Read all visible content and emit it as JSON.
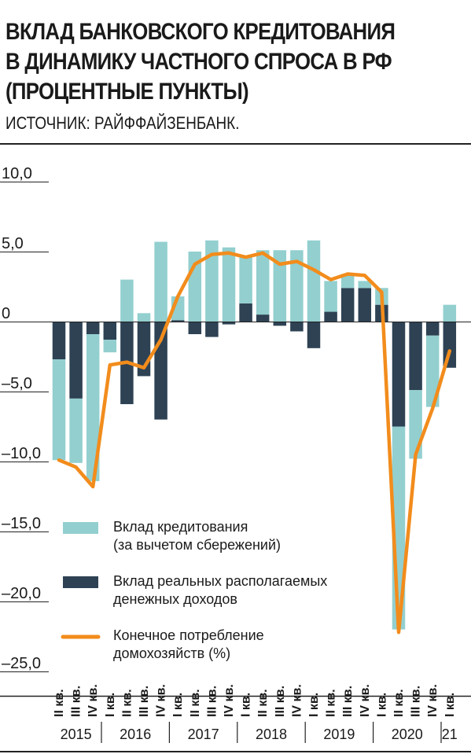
{
  "header": {
    "title_lines": [
      "ВКЛАД БАНКОВСКОГО КРЕДИТОВАНИЯ",
      "В ДИНАМИКУ ЧАСТНОГО СПРОСА В РФ",
      "(ПРОЦЕНТНЫЕ ПУНКТЫ)"
    ],
    "source": "ИСТОЧНИК: РАЙФФАЙЗЕНБАНК."
  },
  "colors": {
    "credit": "#93cfcf",
    "income": "#2e4254",
    "consumption": "#f28c1c",
    "axis": "#222222"
  },
  "chart_data": {
    "type": "bar",
    "stacked": true,
    "ylim": [
      -25,
      10
    ],
    "yticks": [
      "10,0",
      "5,0",
      "0",
      "–5,0",
      "–10,0",
      "–15,0",
      "–20,0",
      "–25,0"
    ],
    "ytick_values": [
      10,
      5,
      0,
      -5,
      -10,
      -15,
      -20,
      -25
    ],
    "categories": [
      "II кв.",
      "III кв.",
      "IV кв.",
      "I кв.",
      "II кв.",
      "III кв.",
      "IV кв.",
      "I кв.",
      "II кв.",
      "III кв.",
      "IV кв.",
      "I кв.",
      "II кв.",
      "III кв.",
      "IV кв.",
      "I кв.",
      "II кв.",
      "III кв.",
      "IV кв.",
      "I кв.",
      "II кв.",
      "III кв.",
      "IV кв.",
      "I кв."
    ],
    "year_groups": [
      {
        "label": "2015",
        "start": 0,
        "end": 2
      },
      {
        "label": "2016",
        "start": 3,
        "end": 6
      },
      {
        "label": "2017",
        "start": 7,
        "end": 10
      },
      {
        "label": "2018",
        "start": 11,
        "end": 14
      },
      {
        "label": "2019",
        "start": 15,
        "end": 18
      },
      {
        "label": "2020",
        "start": 19,
        "end": 22
      },
      {
        "label": "21",
        "start": 23,
        "end": 23
      }
    ],
    "series": [
      {
        "name": "Вклад реальных располагаемых денежных доходов",
        "kind": "bar",
        "values": [
          -2.7,
          -5.5,
          -0.9,
          -1.3,
          -5.9,
          -3.9,
          -7.0,
          0.1,
          -0.9,
          -1.1,
          -0.2,
          1.3,
          0.5,
          -0.3,
          -0.7,
          -1.9,
          0.7,
          2.4,
          2.4,
          1.2,
          -7.5,
          -4.9,
          -1.0,
          -3.3
        ]
      },
      {
        "name": "Вклад кредитования (за вычетом сбережений)",
        "kind": "bar",
        "values": [
          -7.2,
          -4.6,
          -10.5,
          -0.9,
          3.0,
          0.6,
          5.7,
          1.7,
          5.0,
          5.8,
          5.3,
          3.4,
          4.6,
          5.1,
          5.1,
          5.8,
          2.2,
          1.0,
          0.5,
          1.2,
          -14.5,
          -4.9,
          -5.1,
          1.2
        ]
      },
      {
        "name": "Конечное потребление домохозяйств (%)",
        "kind": "line",
        "values": [
          -9.9,
          -10.4,
          -11.8,
          -3.1,
          -2.9,
          -3.3,
          -1.3,
          1.8,
          4.1,
          4.8,
          4.9,
          4.6,
          4.9,
          4.1,
          4.3,
          3.7,
          3.0,
          3.4,
          3.3,
          2.1,
          -22.2,
          -9.5,
          -6.2,
          -2.1
        ]
      }
    ],
    "legend": [
      {
        "label_lines": [
          "Вклад кредитования",
          "(за вычетом сбережений)"
        ],
        "swatch": "credit"
      },
      {
        "label_lines": [
          "Вклад реальных располагаемых",
          "денежных доходов"
        ],
        "swatch": "income"
      },
      {
        "label_lines": [
          "Конечное потребление",
          "домохозяйств (%)"
        ],
        "swatch": "consumption"
      }
    ],
    "legend_position": "bottom-left",
    "grid": false
  }
}
